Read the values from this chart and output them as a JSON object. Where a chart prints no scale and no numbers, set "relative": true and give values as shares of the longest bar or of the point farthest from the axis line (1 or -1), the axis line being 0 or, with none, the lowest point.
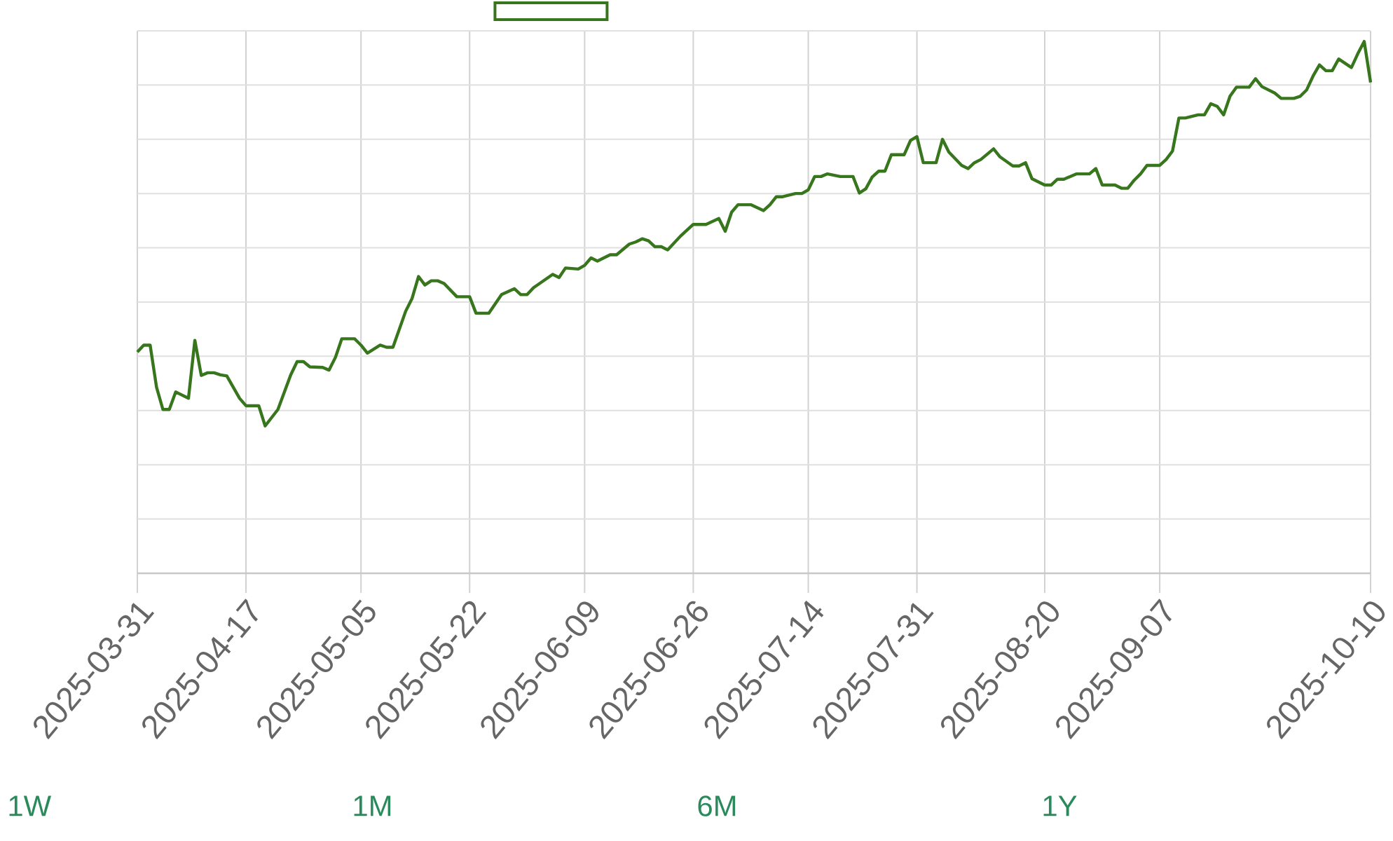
{
  "chart_data": {
    "type": "line",
    "relative": true,
    "color": "#38761d",
    "grid": true,
    "xlim": [
      "2025-03-31",
      "2025-10-10"
    ],
    "xticks": [
      "2025-03-31",
      "2025-04-17",
      "2025-05-05",
      "2025-05-22",
      "2025-06-09",
      "2025-06-26",
      "2025-07-14",
      "2025-07-31",
      "2025-08-20",
      "2025-09-07",
      "2025-10-10"
    ],
    "x": [
      "2025-03-31",
      "2025-04-01",
      "2025-04-02",
      "2025-04-03",
      "2025-04-04",
      "2025-04-05",
      "2025-04-06",
      "2025-04-08",
      "2025-04-09",
      "2025-04-10",
      "2025-04-11",
      "2025-04-12",
      "2025-04-13",
      "2025-04-14",
      "2025-04-16",
      "2025-04-17",
      "2025-04-19",
      "2025-04-20",
      "2025-04-22",
      "2025-04-24",
      "2025-04-25",
      "2025-04-26",
      "2025-04-27",
      "2025-04-29",
      "2025-04-30",
      "2025-05-01",
      "2025-05-02",
      "2025-05-04",
      "2025-05-05",
      "2025-05-06",
      "2025-05-08",
      "2025-05-09",
      "2025-05-10",
      "2025-05-12",
      "2025-05-13",
      "2025-05-14",
      "2025-05-15",
      "2025-05-16",
      "2025-05-17",
      "2025-05-18",
      "2025-05-20",
      "2025-05-22",
      "2025-05-23",
      "2025-05-25",
      "2025-05-27",
      "2025-05-29",
      "2025-05-30",
      "2025-05-31",
      "2025-06-01",
      "2025-06-04",
      "2025-06-05",
      "2025-06-06",
      "2025-06-08",
      "2025-06-09",
      "2025-06-10",
      "2025-06-11",
      "2025-06-12",
      "2025-06-13",
      "2025-06-14",
      "2025-06-16",
      "2025-06-17",
      "2025-06-18",
      "2025-06-19",
      "2025-06-20",
      "2025-06-21",
      "2025-06-22",
      "2025-06-24",
      "2025-06-26",
      "2025-06-28",
      "2025-06-30",
      "2025-07-01",
      "2025-07-02",
      "2025-07-03",
      "2025-07-05",
      "2025-07-07",
      "2025-07-08",
      "2025-07-09",
      "2025-07-10",
      "2025-07-12",
      "2025-07-13",
      "2025-07-14",
      "2025-07-15",
      "2025-07-16",
      "2025-07-17",
      "2025-07-19",
      "2025-07-21",
      "2025-07-22",
      "2025-07-23",
      "2025-07-24",
      "2025-07-25",
      "2025-07-26",
      "2025-07-27",
      "2025-07-29",
      "2025-07-30",
      "2025-07-31",
      "2025-08-01",
      "2025-08-03",
      "2025-08-04",
      "2025-08-05",
      "2025-08-07",
      "2025-08-08",
      "2025-08-09",
      "2025-08-10",
      "2025-08-12",
      "2025-08-13",
      "2025-08-15",
      "2025-08-16",
      "2025-08-17",
      "2025-08-18",
      "2025-08-20",
      "2025-08-21",
      "2025-08-22",
      "2025-08-23",
      "2025-08-25",
      "2025-08-27",
      "2025-08-28",
      "2025-08-29",
      "2025-08-31",
      "2025-09-01",
      "2025-09-02",
      "2025-09-03",
      "2025-09-04",
      "2025-09-05",
      "2025-09-07",
      "2025-09-08",
      "2025-09-09",
      "2025-09-10",
      "2025-09-11",
      "2025-09-13",
      "2025-09-14",
      "2025-09-15",
      "2025-09-16",
      "2025-09-17",
      "2025-09-18",
      "2025-09-19",
      "2025-09-21",
      "2025-09-22",
      "2025-09-23",
      "2025-09-25",
      "2025-09-26",
      "2025-09-28",
      "2025-09-29",
      "2025-09-30",
      "2025-10-01",
      "2025-10-02",
      "2025-10-03",
      "2025-10-04",
      "2025-10-05",
      "2025-10-07",
      "2025-10-08",
      "2025-10-09",
      "2025-10-10"
    ],
    "values": [
      0.416,
      0.429,
      0.429,
      0.35,
      0.308,
      0.308,
      0.341,
      0.329,
      0.438,
      0.372,
      0.377,
      0.377,
      0.373,
      0.371,
      0.329,
      0.315,
      0.315,
      0.277,
      0.308,
      0.373,
      0.398,
      0.398,
      0.388,
      0.387,
      0.382,
      0.406,
      0.441,
      0.441,
      0.429,
      0.414,
      0.429,
      0.425,
      0.425,
      0.493,
      0.517,
      0.558,
      0.542,
      0.55,
      0.55,
      0.545,
      0.52,
      0.52,
      0.489,
      0.489,
      0.524,
      0.535,
      0.524,
      0.524,
      0.537,
      0.562,
      0.556,
      0.574,
      0.572,
      0.579,
      0.593,
      0.587,
      0.593,
      0.599,
      0.599,
      0.619,
      0.623,
      0.629,
      0.625,
      0.614,
      0.614,
      0.608,
      0.634,
      0.656,
      0.656,
      0.667,
      0.643,
      0.679,
      0.693,
      0.693,
      0.682,
      0.693,
      0.708,
      0.708,
      0.714,
      0.714,
      0.721,
      0.746,
      0.746,
      0.751,
      0.746,
      0.746,
      0.715,
      0.723,
      0.745,
      0.756,
      0.756,
      0.787,
      0.787,
      0.814,
      0.821,
      0.772,
      0.772,
      0.816,
      0.792,
      0.767,
      0.761,
      0.772,
      0.778,
      0.798,
      0.783,
      0.766,
      0.766,
      0.772,
      0.742,
      0.73,
      0.73,
      0.741,
      0.741,
      0.751,
      0.751,
      0.761,
      0.73,
      0.73,
      0.724,
      0.724,
      0.739,
      0.751,
      0.767,
      0.767,
      0.778,
      0.794,
      0.856,
      0.856,
      0.862,
      0.862,
      0.883,
      0.878,
      0.862,
      0.897,
      0.914,
      0.914,
      0.93,
      0.915,
      0.903,
      0.893,
      0.893,
      0.897,
      0.909,
      0.935,
      0.956,
      0.945,
      0.945,
      0.967,
      0.951,
      0.977,
      1.0,
      0.923
    ],
    "annotations": [
      "1W",
      "1M",
      "6M",
      "1Y"
    ]
  }
}
